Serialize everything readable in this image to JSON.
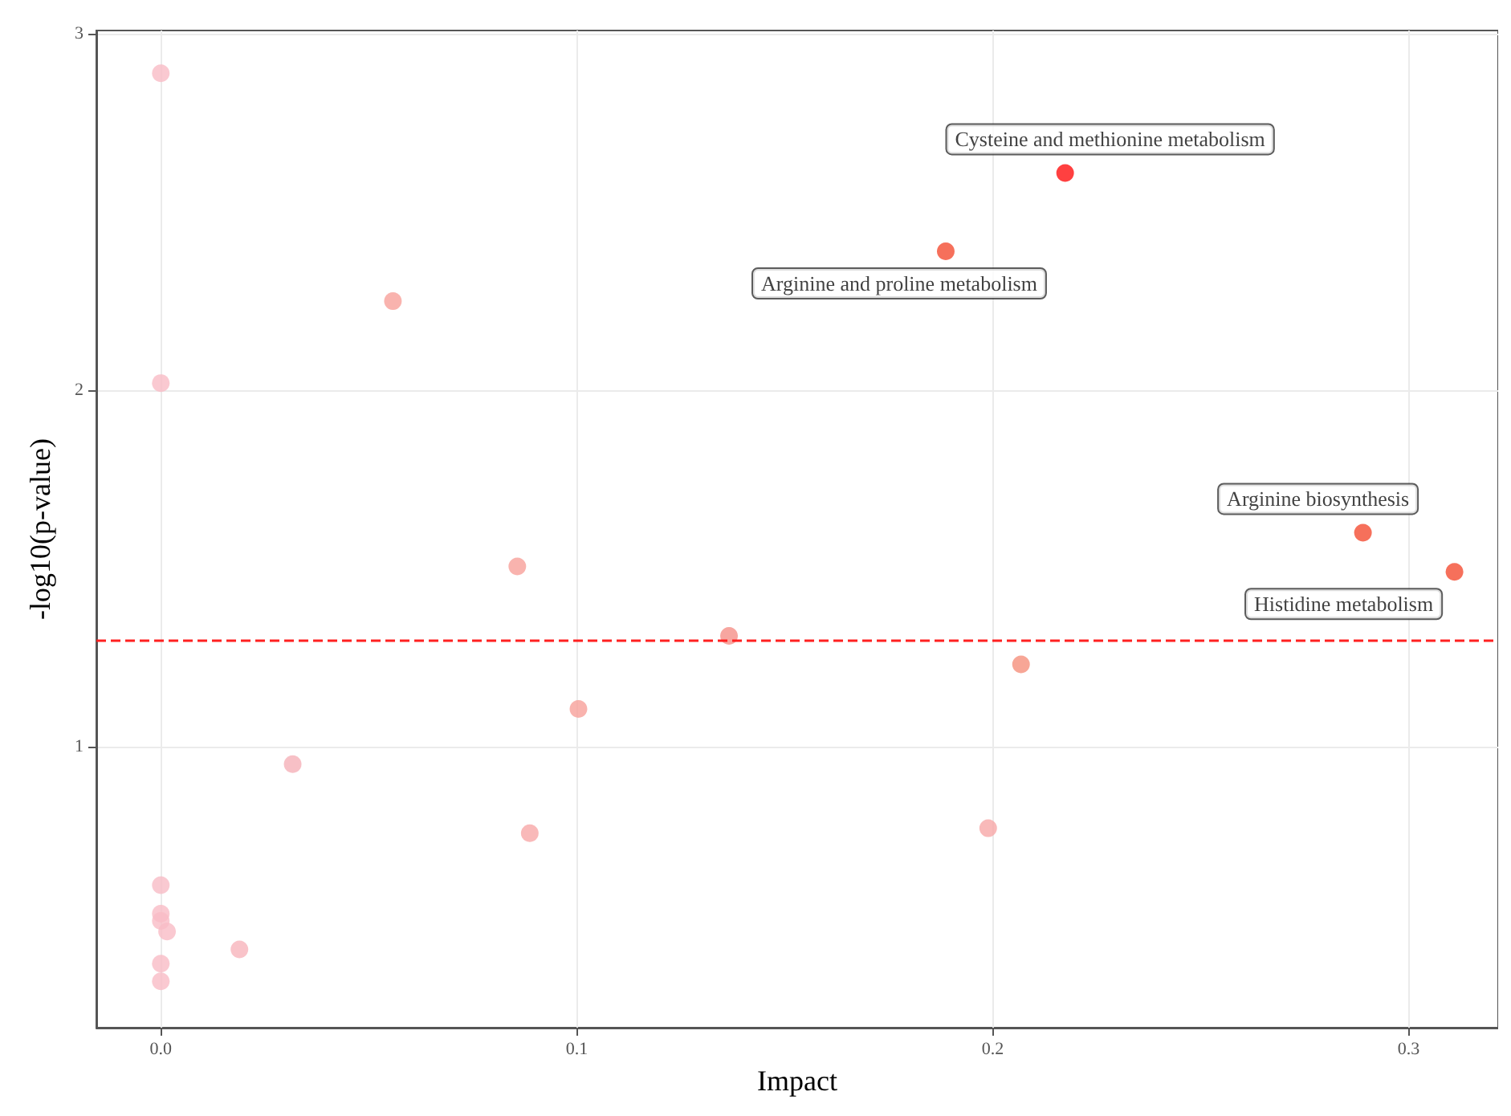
{
  "chart_data": {
    "type": "scatter",
    "xlabel": "Impact",
    "ylabel": "-log10(p-value)",
    "xlim": [
      -0.0155,
      0.3215
    ],
    "xticks": [
      {
        "value": 0,
        "label": "0.0"
      },
      0.1,
      0.2,
      0.3
    ],
    "ylim": [
      0.21,
      3.01
    ],
    "yticks": [
      1,
      2,
      3
    ],
    "grid": true,
    "marker": "circle",
    "x": [
      0,
      0,
      0.0558,
      0.0857,
      0.1366,
      0.1004,
      0.0317,
      0.0887,
      0,
      0,
      0,
      0.0015,
      0.0189,
      0,
      0,
      0.2068,
      0.1989,
      0.1887,
      0.2174,
      0.289,
      0.311
    ],
    "values": [
      2.89,
      2.02,
      2.25,
      1.505,
      1.31,
      1.105,
      0.95,
      0.756,
      0.61,
      0.53,
      0.51,
      0.48,
      0.43,
      0.39,
      0.34,
      1.23,
      0.77,
      2.39,
      2.61,
      1.6,
      1.49
    ],
    "colors": [
      "#f9bcc6",
      "#f9bcc6",
      "#f7a09a",
      "#f7a09a",
      "#f59088",
      "#f7a09a",
      "#f5b0b8",
      "#f7a8a8",
      "#f7bcc6",
      "#f9bcc6",
      "#f9bcc6",
      "#f9bcc6",
      "#f7b4bc",
      "#f9bcc6",
      "#f9bcc6",
      "#f5907c",
      "#f7a8a8",
      "#f44c32",
      "#ff1010",
      "#f44c32",
      "#f44c32"
    ],
    "ref_lines": [
      {
        "axis": "y",
        "value": 1.3,
        "color": "#ff2020",
        "line_style": "dashed"
      }
    ],
    "annotations": [
      {
        "text": "Cysteine and methionine metabolism",
        "x": 0.2174,
        "y": 2.61
      },
      {
        "text": "Arginine and proline metabolism",
        "x": 0.1887,
        "y": 2.39
      },
      {
        "text": "Arginine biosynthesis",
        "x": 0.289,
        "y": 1.6
      },
      {
        "text": "Histidine metabolism",
        "x": 0.311,
        "y": 1.49
      }
    ]
  }
}
